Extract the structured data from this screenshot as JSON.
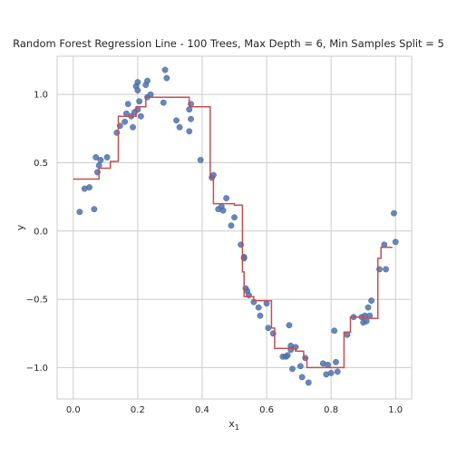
{
  "chart_data": {
    "type": "scatter",
    "title": "Random Forest Regression Line - 100 Trees, Max Depth = 6, Min Samples Split = 5",
    "xlabel": "x",
    "xlabel_sub": "1",
    "ylabel": "y",
    "xlim": [
      -0.05,
      1.05
    ],
    "ylim": [
      -1.23,
      1.28
    ],
    "xticks": [
      0.0,
      0.2,
      0.4,
      0.6,
      0.8,
      1.0
    ],
    "xtick_labels": [
      "0.0",
      "0.2",
      "0.4",
      "0.6",
      "0.8",
      "1.0"
    ],
    "yticks": [
      -1.0,
      -0.5,
      0.0,
      0.5,
      1.0
    ],
    "ytick_labels": [
      "−1.0",
      "−0.5",
      "0.0",
      "0.5",
      "1.0"
    ],
    "grid": true,
    "colors": {
      "points": "#4c72b0",
      "line": "#c44e52",
      "grid": "#cccccc",
      "frame": "#cccccc"
    },
    "series": [
      {
        "kind": "scatter",
        "x": [
          0.02,
          0.035,
          0.05,
          0.065,
          0.07,
          0.075,
          0.08,
          0.085,
          0.105,
          0.135,
          0.145,
          0.16,
          0.165,
          0.17,
          0.18,
          0.185,
          0.19,
          0.195,
          0.2,
          0.2,
          0.205,
          0.2,
          0.21,
          0.225,
          0.23,
          0.23,
          0.24,
          0.28,
          0.285,
          0.29,
          0.32,
          0.33,
          0.36,
          0.365,
          0.365,
          0.36,
          0.395,
          0.43,
          0.435,
          0.45,
          0.46,
          0.465,
          0.475,
          0.49,
          0.5,
          0.52,
          0.53,
          0.53,
          0.535,
          0.54,
          0.545,
          0.56,
          0.575,
          0.58,
          0.6,
          0.605,
          0.62,
          0.65,
          0.66,
          0.665,
          0.67,
          0.675,
          0.675,
          0.68,
          0.69,
          0.705,
          0.71,
          0.72,
          0.73,
          0.775,
          0.785,
          0.79,
          0.8,
          0.81,
          0.815,
          0.82,
          0.85,
          0.87,
          0.895,
          0.9,
          0.905,
          0.91,
          0.915,
          0.925,
          0.92,
          0.95,
          0.965,
          0.97,
          0.995,
          1.0
        ],
        "y": [
          0.14,
          0.31,
          0.32,
          0.16,
          0.54,
          0.43,
          0.48,
          0.52,
          0.54,
          0.72,
          0.77,
          0.8,
          0.86,
          0.93,
          0.84,
          0.76,
          0.87,
          1.06,
          1.03,
          0.89,
          0.95,
          1.09,
          0.84,
          1.07,
          1.1,
          0.98,
          1.0,
          0.94,
          1.18,
          1.12,
          0.81,
          0.76,
          0.73,
          0.82,
          0.93,
          0.89,
          0.52,
          0.39,
          0.41,
          0.16,
          0.18,
          0.15,
          0.24,
          0.04,
          0.1,
          -0.1,
          -0.19,
          -0.2,
          -0.42,
          -0.44,
          -0.47,
          -0.52,
          -0.56,
          -0.62,
          -0.53,
          -0.71,
          -0.75,
          -0.92,
          -0.92,
          -0.91,
          -0.69,
          -0.84,
          -0.87,
          -1.01,
          -0.85,
          -0.99,
          -1.07,
          -0.93,
          -1.11,
          -0.97,
          -1.05,
          -0.98,
          -1.04,
          -0.73,
          -0.96,
          -1.03,
          -0.76,
          -0.63,
          -0.63,
          -0.67,
          -0.62,
          -0.66,
          -0.56,
          -0.51,
          -0.62,
          -0.28,
          -0.1,
          -0.28,
          0.13,
          -0.08
        ]
      },
      {
        "kind": "step-line",
        "x": [
          0.0,
          0.08,
          0.08,
          0.115,
          0.115,
          0.14,
          0.14,
          0.195,
          0.195,
          0.225,
          0.225,
          0.36,
          0.36,
          0.425,
          0.425,
          0.435,
          0.435,
          0.5,
          0.5,
          0.525,
          0.525,
          0.53,
          0.53,
          0.56,
          0.56,
          0.615,
          0.615,
          0.625,
          0.625,
          0.69,
          0.69,
          0.715,
          0.715,
          0.725,
          0.725,
          0.84,
          0.84,
          0.86,
          0.86,
          0.9,
          0.9,
          0.945,
          0.945,
          0.955,
          0.955,
          0.99
        ],
        "y": [
          0.38,
          0.38,
          0.46,
          0.46,
          0.51,
          0.51,
          0.84,
          0.84,
          0.91,
          0.91,
          0.98,
          0.98,
          0.91,
          0.91,
          0.39,
          0.39,
          0.2,
          0.2,
          0.19,
          0.19,
          -0.3,
          -0.3,
          -0.48,
          -0.48,
          -0.51,
          -0.51,
          -0.71,
          -0.71,
          -0.86,
          -0.86,
          -0.88,
          -0.88,
          -0.93,
          -0.93,
          -1.0,
          -1.0,
          -0.74,
          -0.74,
          -0.63,
          -0.63,
          -0.64,
          -0.64,
          -0.2,
          -0.2,
          -0.12,
          -0.12
        ]
      }
    ]
  }
}
